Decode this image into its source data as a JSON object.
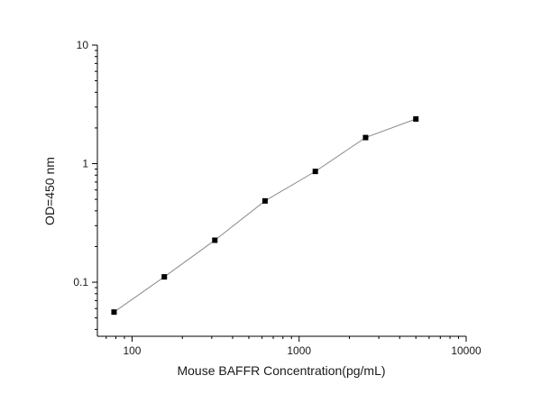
{
  "chart_data": {
    "type": "line",
    "title": "",
    "xlabel": "Mouse BAFFR Concentration(pg/mL)",
    "ylabel": "OD=450 nm",
    "x_scale": "log",
    "y_scale": "log",
    "xlim": [
      62,
      10000
    ],
    "ylim": [
      0.035,
      10
    ],
    "x_ticks": [
      {
        "value": 100,
        "label": "100"
      },
      {
        "value": 1000,
        "label": "1000"
      },
      {
        "value": 10000,
        "label": "10000"
      }
    ],
    "y_ticks": [
      {
        "value": 0.1,
        "label": "0.1"
      },
      {
        "value": 1,
        "label": "1"
      },
      {
        "value": 10,
        "label": "10"
      }
    ],
    "grid": false,
    "legend": "none",
    "marker": "square",
    "colors": {
      "line": "#8a8a8a",
      "marker": "#000000",
      "axis": "#000000"
    },
    "series": [
      {
        "points": [
          {
            "x": 78,
            "y": 0.056
          },
          {
            "x": 156,
            "y": 0.111
          },
          {
            "x": 313,
            "y": 0.226
          },
          {
            "x": 625,
            "y": 0.485
          },
          {
            "x": 1250,
            "y": 0.86
          },
          {
            "x": 2500,
            "y": 1.66
          },
          {
            "x": 5000,
            "y": 2.38
          }
        ]
      }
    ]
  }
}
